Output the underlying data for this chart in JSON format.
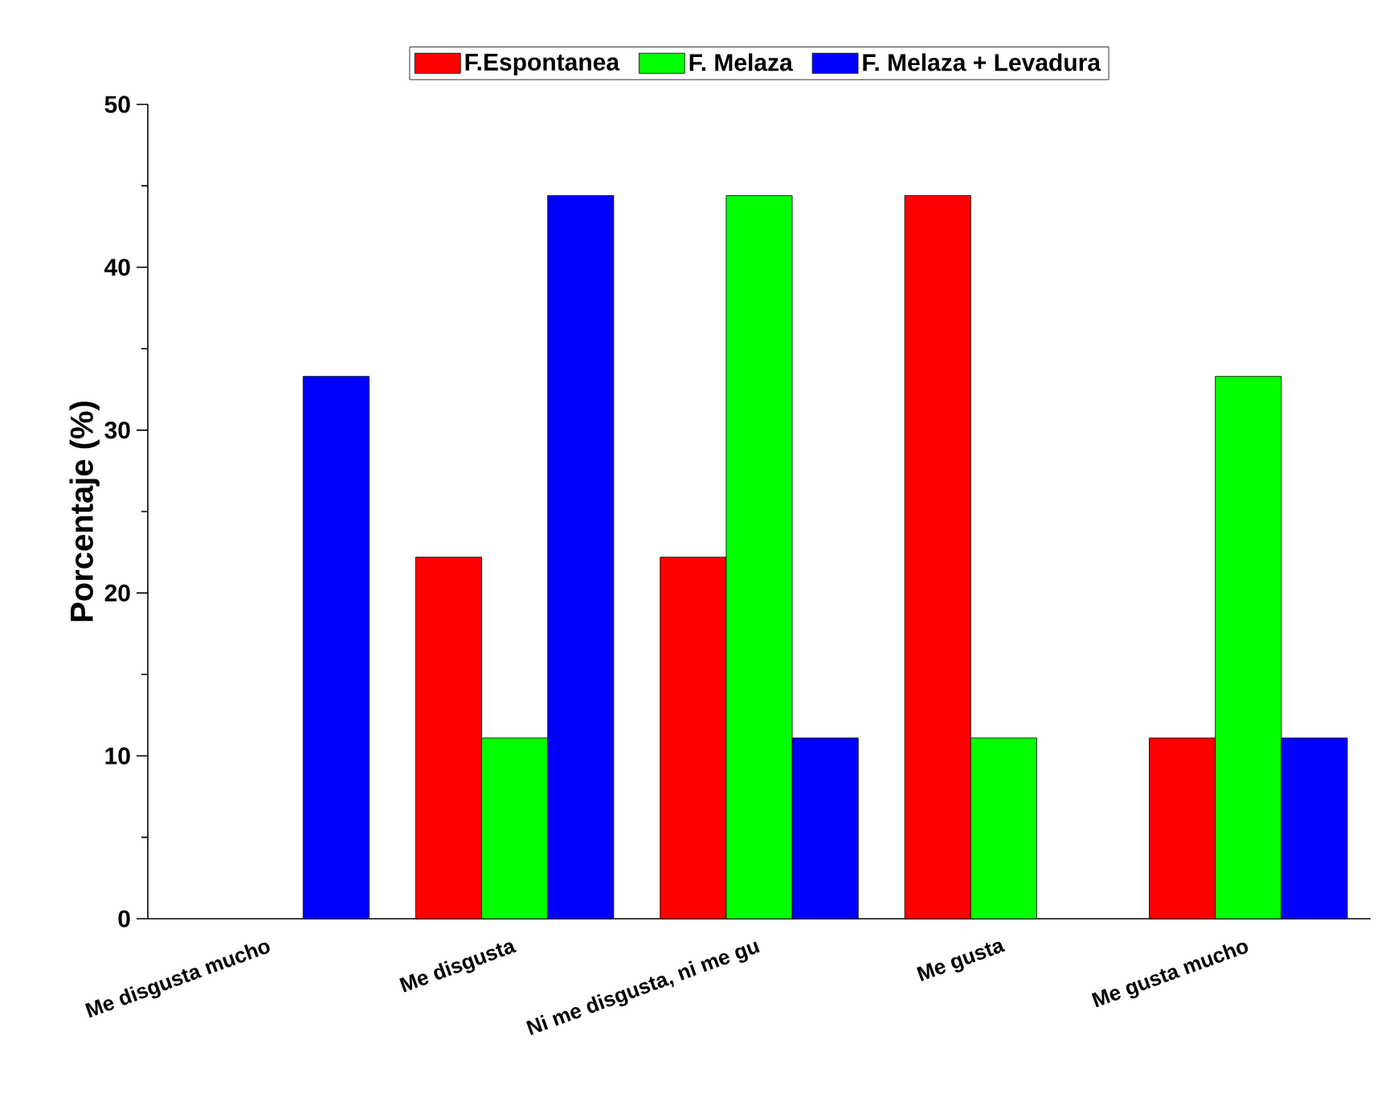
{
  "chart_data": {
    "type": "bar",
    "ylabel": "Porcentaje (%)",
    "categories": [
      "Me disgusta mucho",
      "Me disgusta",
      "Ni me disgusta, ni me gu",
      "Me gusta",
      "Me gusta mucho"
    ],
    "series": [
      {
        "name": "F.Espontanea",
        "color": "#ff0000",
        "values": [
          null,
          22.2,
          22.2,
          44.4,
          11.1
        ]
      },
      {
        "name": "F. Melaza",
        "color": "#00ff00",
        "values": [
          null,
          11.1,
          44.4,
          11.1,
          33.3
        ]
      },
      {
        "name": "F. Melaza + Levadura",
        "color": "#0000ff",
        "values": [
          33.3,
          44.4,
          11.1,
          null,
          11.1
        ]
      }
    ],
    "ylim": [
      0,
      50
    ],
    "yticks": [
      0,
      10,
      20,
      30,
      40,
      50
    ],
    "grid": false,
    "legend": "top"
  }
}
